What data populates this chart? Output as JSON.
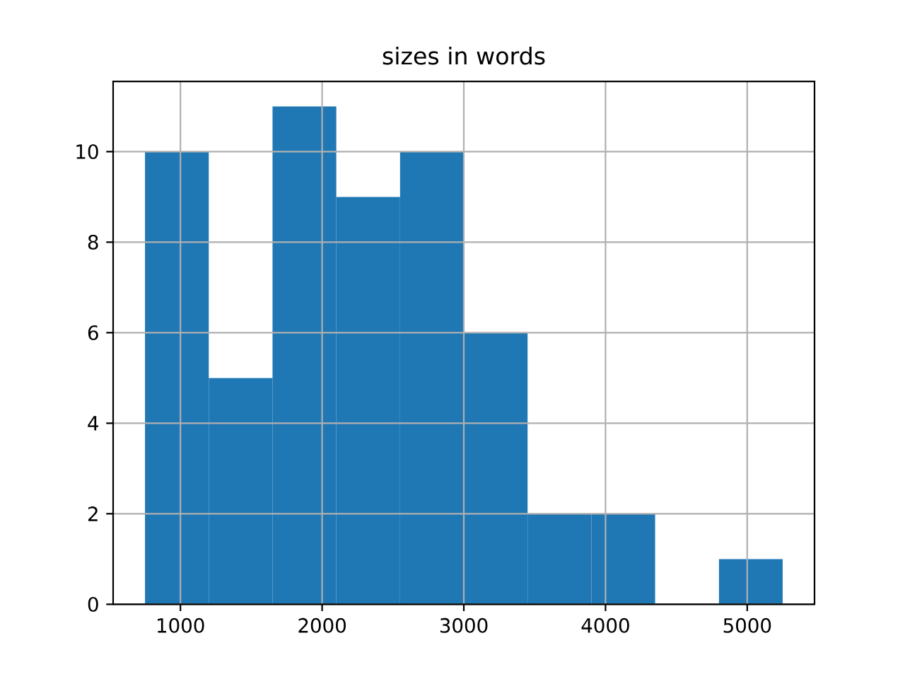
{
  "chart_data": {
    "type": "histogram",
    "title": "sizes in words",
    "bins": [
      750,
      1200,
      1650,
      2100,
      2550,
      3000,
      3450,
      3900,
      4350,
      4800,
      5250
    ],
    "values": [
      10,
      5,
      11,
      9,
      10,
      6,
      2,
      2,
      0,
      1
    ],
    "color": "#1f77b4",
    "xlim": [
      525,
      5475
    ],
    "ylim": [
      0,
      11.55
    ],
    "xticks": [
      1000,
      2000,
      3000,
      4000,
      5000
    ],
    "yticks": [
      0,
      2,
      4,
      6,
      8,
      10
    ],
    "grid": true
  }
}
